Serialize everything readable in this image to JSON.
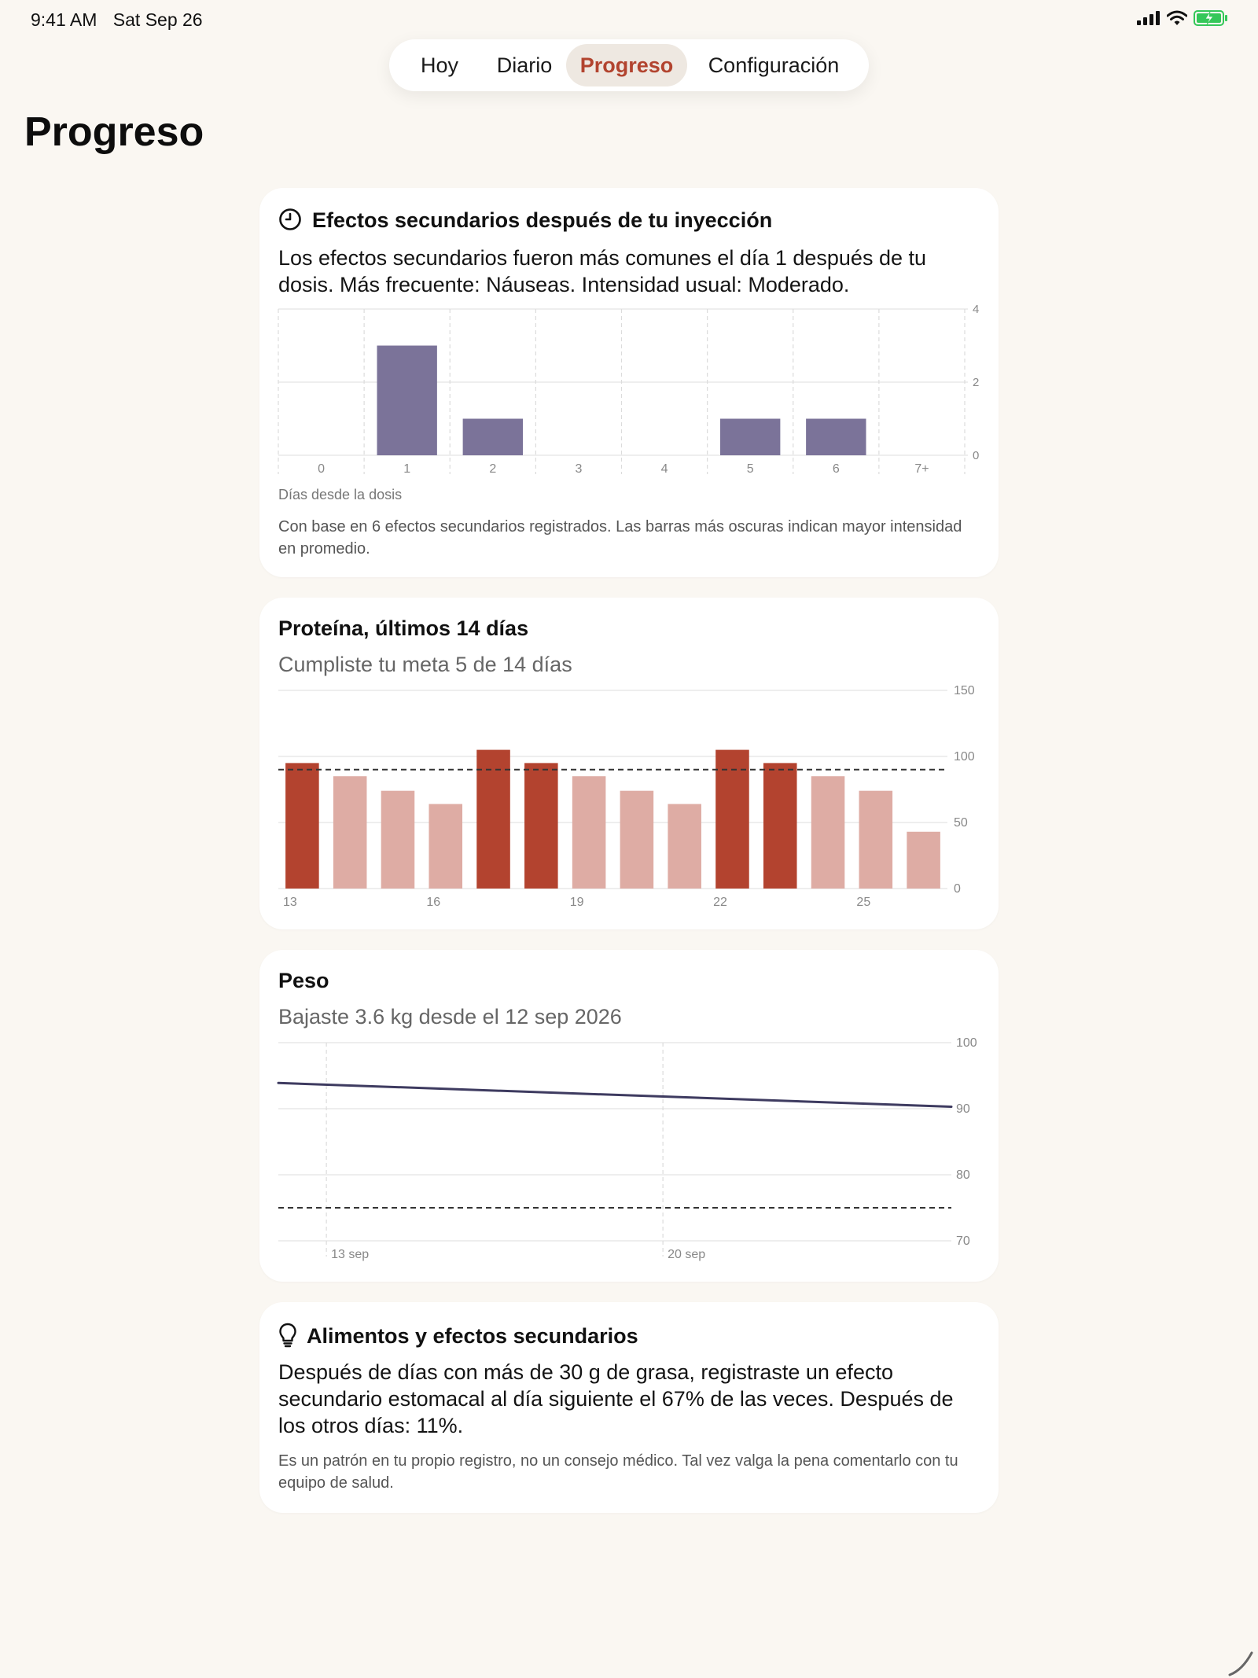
{
  "status_bar": {
    "time": "9:41 AM",
    "date": "Sat Sep 26"
  },
  "tabs": [
    {
      "label": "Hoy",
      "active": false
    },
    {
      "label": "Diario",
      "active": false
    },
    {
      "label": "Progreso",
      "active": true
    },
    {
      "label": "Configuración",
      "active": false
    }
  ],
  "page_title": "Progreso",
  "side_effects": {
    "icon": "clock-icon",
    "title": "Efectos secundarios después de tu inyección",
    "summary": "Los efectos secundarios fueron más comunes el día 1 después de tu dosis. Más frecuente: Náuseas. Intensidad usual: Moderado.",
    "axis_caption": "Días desde la dosis",
    "footnote": "Con base en 6 efectos secundarios registrados. Las barras más oscuras indican mayor intensidad en promedio."
  },
  "protein": {
    "title": "Proteína, últimos 14 días",
    "subtitle": "Cumpliste tu meta 5 de 14 días"
  },
  "weight": {
    "title": "Peso",
    "subtitle": "Bajaste 3.6 kg desde el 12 sep 2026"
  },
  "insight": {
    "icon": "lightbulb-icon",
    "title": "Alimentos y efectos secundarios",
    "body": "Después de días con más de 30 g de grasa, registraste un efecto secundario estomacal al día siguiente el 67% de las veces. Después de los otros días: 11%.",
    "note": "Es un patrón en tu propio registro, no un consejo médico. Tal vez valga la pena comentarlo con tu equipo de salud."
  },
  "colors": {
    "side_effect_bar": "#7b7399",
    "protein_met": "#b3432f",
    "protein_unmet": "#deaca4",
    "weight_line": "#3e3b60",
    "tab_active_text": "#b2442f"
  },
  "chart_data": [
    {
      "type": "bar",
      "categories": [
        "0",
        "1",
        "2",
        "3",
        "4",
        "5",
        "6",
        "7+"
      ],
      "values": [
        0,
        3,
        1,
        0,
        0,
        1,
        1,
        0
      ],
      "xlabel": "Días desde la dosis",
      "ylim": [
        0,
        4
      ],
      "yticks": [
        0,
        2,
        4
      ],
      "grid": true
    },
    {
      "type": "bar",
      "x": [
        13,
        14,
        15,
        16,
        17,
        18,
        19,
        20,
        21,
        22,
        23,
        24,
        25,
        26
      ],
      "xtick_labels": [
        "13",
        "16",
        "19",
        "22",
        "25"
      ],
      "xticks": [
        13,
        16,
        19,
        22,
        25
      ],
      "values": [
        95,
        85,
        74,
        64,
        105,
        95,
        85,
        74,
        64,
        105,
        95,
        85,
        74,
        43
      ],
      "met_goal": [
        true,
        false,
        false,
        false,
        true,
        true,
        false,
        false,
        false,
        true,
        true,
        false,
        false,
        false
      ],
      "goal": 90,
      "ylim": [
        0,
        150
      ],
      "yticks": [
        0,
        50,
        100,
        150
      ],
      "grid": true
    },
    {
      "type": "line",
      "x": [
        "2026-09-12",
        "2026-09-26"
      ],
      "values": [
        93.9,
        90.3
      ],
      "goal": 75,
      "xtick_labels": [
        "13 sep",
        "20 sep"
      ],
      "xticks": [
        "2026-09-13",
        "2026-09-20"
      ],
      "ylim": [
        70,
        100
      ],
      "yticks": [
        70,
        80,
        90,
        100
      ],
      "grid": true
    }
  ]
}
